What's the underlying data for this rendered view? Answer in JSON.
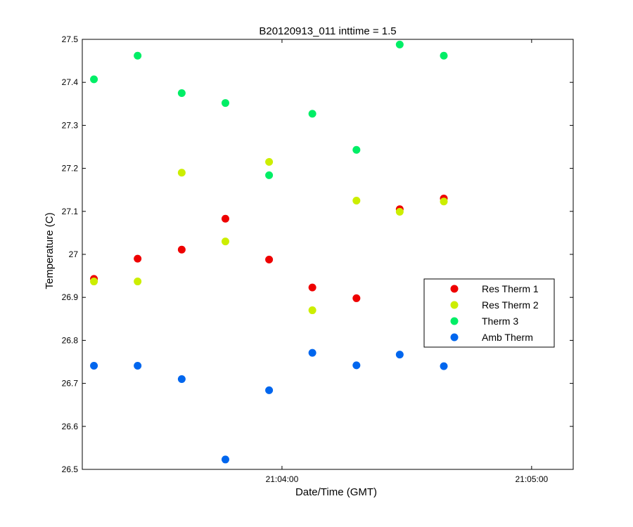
{
  "chart_data": {
    "type": "scatter",
    "title": "B20120913_011 inttime = 1.5",
    "xlabel": "Date/Time (GMT)",
    "ylabel": "Temperature (C)",
    "x_axis": {
      "kind": "time",
      "range": [
        "21:03:12",
        "21:05:10"
      ],
      "ticks": [
        {
          "value": "21:04:00",
          "label": "21:04:00"
        },
        {
          "value": "21:05:00",
          "label": "21:05:00"
        }
      ]
    },
    "y_axis": {
      "range": [
        26.5,
        27.5
      ],
      "ticks": [
        {
          "value": 26.5,
          "label": "26.5"
        },
        {
          "value": 26.6,
          "label": "26.6"
        },
        {
          "value": 26.7,
          "label": "26.7"
        },
        {
          "value": 26.8,
          "label": "26.8"
        },
        {
          "value": 26.9,
          "label": "26.9"
        },
        {
          "value": 27.0,
          "label": "27"
        },
        {
          "value": 27.1,
          "label": "27.1"
        },
        {
          "value": 27.2,
          "label": "27.2"
        },
        {
          "value": 27.3,
          "label": "27.3"
        },
        {
          "value": 27.4,
          "label": "27.4"
        },
        {
          "value": 27.5,
          "label": "27.5"
        }
      ]
    },
    "grid": false,
    "legend_position": "right",
    "x": [
      "21:03:14.8",
      "21:03:25.3",
      "21:03:35.9",
      "21:03:46.4",
      "21:03:56.9",
      "21:04:07.3",
      "21:04:17.9",
      "21:04:28.3",
      "21:04:38.9"
    ],
    "series": [
      {
        "name": "Res Therm 1",
        "color": "#ee0000",
        "values": [
          26.943,
          26.99,
          27.011,
          27.083,
          26.988,
          26.923,
          26.898,
          27.105,
          27.13
        ]
      },
      {
        "name": "Res Therm 2",
        "color": "#ccee00",
        "values": [
          26.937,
          26.937,
          27.19,
          27.03,
          27.215,
          26.87,
          27.125,
          27.099,
          27.123
        ]
      },
      {
        "name": "Therm 3",
        "color": "#00ee66",
        "values": [
          27.407,
          27.462,
          27.375,
          27.352,
          27.184,
          27.327,
          27.243,
          27.488,
          27.462
        ]
      },
      {
        "name": "Amb Therm",
        "color": "#0066ee",
        "values": [
          26.741,
          26.741,
          26.71,
          26.523,
          26.684,
          26.771,
          26.742,
          26.767,
          26.74
        ]
      }
    ]
  }
}
